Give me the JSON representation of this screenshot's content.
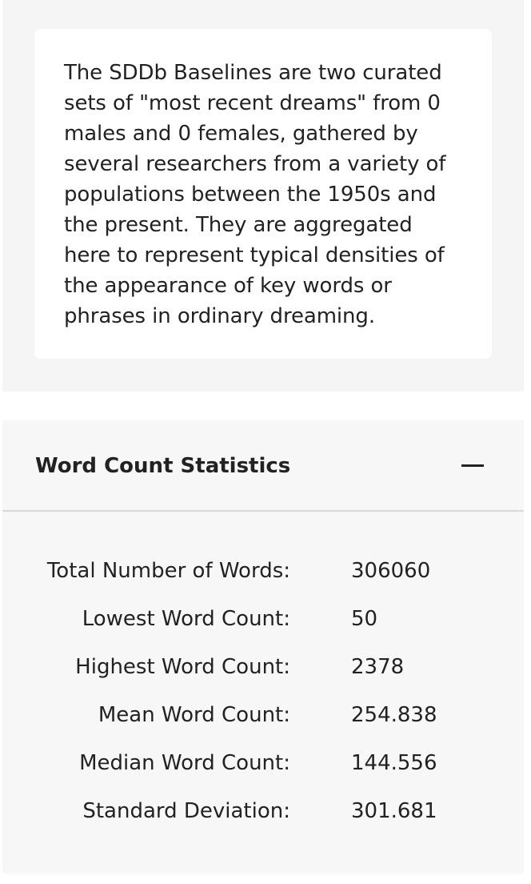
{
  "description": {
    "text": "The SDDb Baselines are two curated sets of \"most recent dreams\" from 0 males and 0 females, gathered by several researchers from a variety of populations between the 1950s and the present. They are aggregated here to represent typical densities of the appearance of key words or phrases in ordinary dreaming."
  },
  "word_count_statistics": {
    "title": "Word Count Statistics",
    "collapse_icon": "minus-icon",
    "rows": [
      {
        "label": "Total Number of Words:",
        "value": "306060"
      },
      {
        "label": "Lowest Word Count:",
        "value": "50"
      },
      {
        "label": "Highest Word Count:",
        "value": "2378"
      },
      {
        "label": "Mean Word Count:",
        "value": "254.838"
      },
      {
        "label": "Median Word Count:",
        "value": "144.556"
      },
      {
        "label": "Standard Deviation:",
        "value": "301.681"
      }
    ]
  }
}
